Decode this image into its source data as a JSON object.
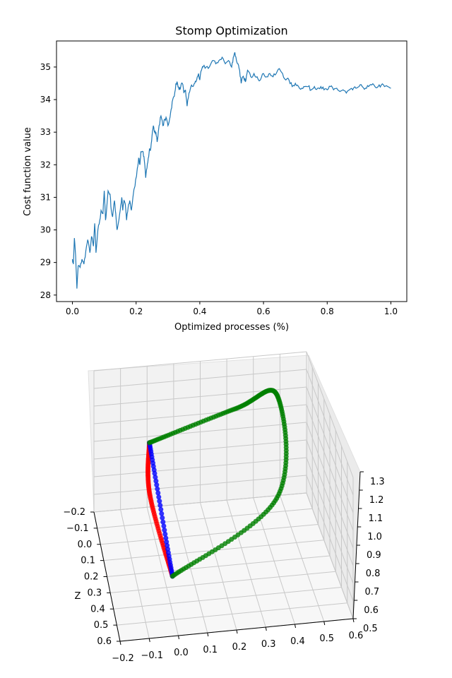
{
  "chart_data": [
    {
      "type": "line",
      "title": "Stomp Optimization",
      "xlabel": "Optimized processes (%)",
      "ylabel": "Cost function value",
      "xlim": [
        -0.05,
        1.05
      ],
      "ylim": [
        27.8,
        35.8
      ],
      "xticks": [
        "0.0",
        "0.2",
        "0.4",
        "0.6",
        "0.8",
        "1.0"
      ],
      "yticks": [
        "28",
        "29",
        "30",
        "31",
        "32",
        "33",
        "34",
        "35"
      ],
      "grid": false,
      "line_color": "#1f77b4",
      "anchors": [
        [
          0.0,
          29.1
        ],
        [
          0.003,
          28.95
        ],
        [
          0.006,
          29.75
        ],
        [
          0.01,
          29.2
        ],
        [
          0.014,
          28.2
        ],
        [
          0.018,
          28.9
        ],
        [
          0.024,
          28.85
        ],
        [
          0.03,
          29.1
        ],
        [
          0.036,
          28.95
        ],
        [
          0.042,
          29.35
        ],
        [
          0.048,
          29.7
        ],
        [
          0.055,
          29.3
        ],
        [
          0.06,
          29.8
        ],
        [
          0.066,
          29.5
        ],
        [
          0.07,
          30.2
        ],
        [
          0.074,
          29.3
        ],
        [
          0.08,
          30.0
        ],
        [
          0.086,
          30.3
        ],
        [
          0.09,
          30.6
        ],
        [
          0.096,
          30.5
        ],
        [
          0.1,
          31.2
        ],
        [
          0.104,
          30.3
        ],
        [
          0.108,
          30.7
        ],
        [
          0.112,
          31.2
        ],
        [
          0.118,
          31.1
        ],
        [
          0.122,
          30.6
        ],
        [
          0.126,
          30.4
        ],
        [
          0.132,
          30.9
        ],
        [
          0.136,
          30.5
        ],
        [
          0.14,
          30.0
        ],
        [
          0.144,
          30.2
        ],
        [
          0.15,
          30.6
        ],
        [
          0.155,
          31.0
        ],
        [
          0.158,
          30.6
        ],
        [
          0.162,
          30.9
        ],
        [
          0.166,
          30.8
        ],
        [
          0.17,
          30.3
        ],
        [
          0.175,
          30.7
        ],
        [
          0.18,
          30.9
        ],
        [
          0.185,
          30.6
        ],
        [
          0.19,
          31.0
        ],
        [
          0.195,
          31.3
        ],
        [
          0.2,
          31.6
        ],
        [
          0.204,
          31.9
        ],
        [
          0.208,
          32.2
        ],
        [
          0.212,
          32.0
        ],
        [
          0.215,
          32.4
        ],
        [
          0.222,
          32.4
        ],
        [
          0.226,
          32.1
        ],
        [
          0.23,
          31.6
        ],
        [
          0.234,
          31.9
        ],
        [
          0.238,
          32.2
        ],
        [
          0.242,
          32.5
        ],
        [
          0.246,
          32.5
        ],
        [
          0.25,
          32.9
        ],
        [
          0.254,
          33.2
        ],
        [
          0.258,
          33.0
        ],
        [
          0.262,
          33.0
        ],
        [
          0.266,
          32.7
        ],
        [
          0.272,
          33.2
        ],
        [
          0.278,
          33.5
        ],
        [
          0.284,
          33.2
        ],
        [
          0.29,
          33.4
        ],
        [
          0.296,
          33.4
        ],
        [
          0.3,
          33.2
        ],
        [
          0.305,
          33.4
        ],
        [
          0.31,
          33.7
        ],
        [
          0.315,
          34.0
        ],
        [
          0.32,
          34.1
        ],
        [
          0.325,
          34.5
        ],
        [
          0.33,
          34.5
        ],
        [
          0.335,
          34.3
        ],
        [
          0.34,
          34.4
        ],
        [
          0.345,
          34.5
        ],
        [
          0.35,
          34.2
        ],
        [
          0.355,
          34.3
        ],
        [
          0.36,
          33.8
        ],
        [
          0.366,
          34.2
        ],
        [
          0.372,
          34.4
        ],
        [
          0.378,
          34.4
        ],
        [
          0.384,
          34.5
        ],
        [
          0.39,
          34.6
        ],
        [
          0.396,
          34.8
        ],
        [
          0.4,
          34.6
        ],
        [
          0.405,
          34.9
        ],
        [
          0.41,
          35.0
        ],
        [
          0.42,
          35.0
        ],
        [
          0.43,
          35.0
        ],
        [
          0.44,
          35.2
        ],
        [
          0.45,
          35.1
        ],
        [
          0.46,
          35.2
        ],
        [
          0.47,
          35.3
        ],
        [
          0.48,
          35.1
        ],
        [
          0.49,
          35.2
        ],
        [
          0.5,
          35.0
        ],
        [
          0.505,
          35.3
        ],
        [
          0.51,
          35.45
        ],
        [
          0.515,
          35.2
        ],
        [
          0.52,
          35.1
        ],
        [
          0.525,
          34.9
        ],
        [
          0.53,
          34.5
        ],
        [
          0.535,
          34.7
        ],
        [
          0.54,
          34.6
        ],
        [
          0.545,
          34.6
        ],
        [
          0.55,
          34.9
        ],
        [
          0.56,
          34.7
        ],
        [
          0.57,
          34.8
        ],
        [
          0.58,
          34.7
        ],
        [
          0.59,
          34.6
        ],
        [
          0.6,
          34.8
        ],
        [
          0.61,
          34.7
        ],
        [
          0.62,
          34.8
        ],
        [
          0.63,
          34.7
        ],
        [
          0.64,
          34.8
        ],
        [
          0.65,
          34.95
        ],
        [
          0.66,
          34.8
        ],
        [
          0.67,
          34.6
        ],
        [
          0.68,
          34.6
        ],
        [
          0.69,
          34.4
        ],
        [
          0.7,
          34.5
        ],
        [
          0.71,
          34.4
        ],
        [
          0.72,
          34.35
        ],
        [
          0.73,
          34.4
        ],
        [
          0.74,
          34.4
        ],
        [
          0.75,
          34.3
        ],
        [
          0.76,
          34.4
        ],
        [
          0.77,
          34.35
        ],
        [
          0.78,
          34.4
        ],
        [
          0.79,
          34.3
        ],
        [
          0.8,
          34.3
        ],
        [
          0.81,
          34.4
        ],
        [
          0.82,
          34.3
        ],
        [
          0.83,
          34.35
        ],
        [
          0.84,
          34.25
        ],
        [
          0.85,
          34.3
        ],
        [
          0.86,
          34.2
        ],
        [
          0.87,
          34.3
        ],
        [
          0.88,
          34.3
        ],
        [
          0.89,
          34.35
        ],
        [
          0.9,
          34.4
        ],
        [
          0.91,
          34.4
        ],
        [
          0.92,
          34.35
        ],
        [
          0.93,
          34.4
        ],
        [
          0.94,
          34.45
        ],
        [
          0.95,
          34.4
        ],
        [
          0.96,
          34.4
        ],
        [
          0.97,
          34.45
        ],
        [
          0.98,
          34.4
        ],
        [
          0.99,
          34.4
        ],
        [
          1.0,
          34.35
        ]
      ]
    },
    {
      "type": "scatter",
      "projection": "3d",
      "zlabel_visible": "Z",
      "xticks": [
        "−0.2",
        "−0.1",
        "0.0",
        "0.1",
        "0.2",
        "0.3",
        "0.4",
        "0.5",
        "0.6"
      ],
      "yticks": [
        "−0.2",
        "−0.1",
        "0.0",
        "0.1",
        "0.2",
        "0.3",
        "0.4",
        "0.5",
        "0.6"
      ],
      "zticks": [
        "0.5",
        "0.6",
        "0.7",
        "0.8",
        "0.9",
        "1.0",
        "1.1",
        "1.2",
        "1.3"
      ],
      "ylabel": "Z",
      "grid": true,
      "start_point": [
        -0.02,
        0.0,
        1.05
      ],
      "end_point": [
        0.0,
        0.45,
        0.7
      ],
      "series": [
        {
          "color": "#ff0000",
          "waypoints": [
            [
              -0.02,
              0.0,
              1.05
            ],
            [
              -0.04,
              0.15,
              0.9
            ],
            [
              0.0,
              0.45,
              0.7
            ]
          ]
        },
        {
          "color": "#0000ff",
          "waypoints": [
            [
              -0.02,
              0.0,
              1.05
            ],
            [
              0.0,
              0.45,
              0.7
            ]
          ]
        },
        {
          "color": "#008000",
          "waypoints": [
            [
              -0.02,
              0.0,
              1.05
            ],
            [
              0.3,
              0.0,
              1.2
            ],
            [
              0.45,
              0.0,
              1.25
            ],
            [
              0.4,
              0.25,
              0.9
            ],
            [
              0.0,
              0.45,
              0.7
            ]
          ]
        }
      ]
    }
  ]
}
